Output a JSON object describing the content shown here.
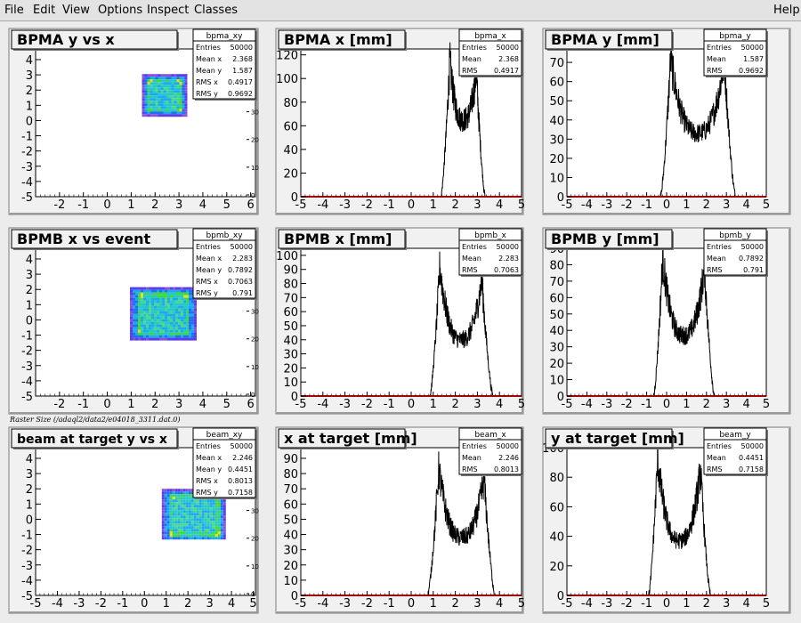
{
  "menu": {
    "items": [
      "File",
      "Edit",
      "View",
      "Options",
      "Inspect",
      "Classes"
    ],
    "help": "Help"
  },
  "canvas_caption": "Raster Size (/adaql2/data2/e04018_3311.dat.0)",
  "colors": {
    "pad_bg": "#f1f1f1",
    "frame": "#000000",
    "hist_line": "#000000",
    "x_axis": "#aa0000",
    "window_bg": "#ececec"
  },
  "chart_data": [
    {
      "type": "heatmap",
      "title": "BPMA y vs x",
      "xlim": [
        -3,
        6.2
      ],
      "ylim": [
        -5,
        4.7
      ],
      "xticks": [
        -2,
        -1,
        0,
        1,
        2,
        3,
        4,
        5,
        6
      ],
      "yticks": [
        -5,
        -4,
        -3,
        -2,
        -1,
        0,
        1,
        2,
        3,
        4
      ],
      "blob": {
        "x": [
          1.45,
          3.25
        ],
        "y": [
          0.4,
          3.05
        ]
      },
      "zticks": [
        0,
        10,
        20,
        30
      ],
      "stats": {
        "name": "bpma_xy",
        "rows": [
          [
            "Entries",
            "50000"
          ],
          [
            "Mean x",
            "2.368"
          ],
          [
            "Mean y",
            "1.587"
          ],
          [
            "RMS x",
            "0.4917"
          ],
          [
            "RMS y",
            "0.9692"
          ]
        ]
      }
    },
    {
      "type": "line",
      "title": "BPMA x [mm]",
      "xlim": [
        -5,
        5
      ],
      "ylim": [
        0,
        125
      ],
      "xticks": [
        -5,
        -4,
        -3,
        -2,
        -1,
        0,
        1,
        2,
        3,
        4,
        5
      ],
      "yticks": [
        0,
        20,
        40,
        60,
        80,
        100,
        120
      ],
      "profile": {
        "edges": [
          1.35,
          1.75,
          2.95,
          3.35
        ],
        "peaks": [
          115,
          105
        ],
        "valley": 65
      },
      "stats": {
        "name": "bpma_x",
        "rows": [
          [
            "Entries",
            "50000"
          ],
          [
            "Mean",
            "2.368"
          ],
          [
            "RMS",
            "0.4917"
          ]
        ]
      }
    },
    {
      "type": "line",
      "title": "BPMA y [mm]",
      "xlim": [
        -5,
        5
      ],
      "ylim": [
        0,
        77
      ],
      "xticks": [
        -5,
        -4,
        -3,
        -2,
        -1,
        0,
        1,
        2,
        3,
        4,
        5
      ],
      "yticks": [
        0,
        10,
        20,
        30,
        40,
        50,
        60,
        70
      ],
      "profile": {
        "edges": [
          -0.3,
          0.2,
          2.9,
          3.45
        ],
        "peaks": [
          72,
          71
        ],
        "valley": 33
      },
      "stats": {
        "name": "bpma_y",
        "rows": [
          [
            "Entries",
            "50000"
          ],
          [
            "Mean",
            "1.587"
          ],
          [
            "RMS",
            "0.9692"
          ]
        ]
      }
    },
    {
      "type": "heatmap",
      "title": "BPMB x vs event",
      "xlim": [
        -3,
        6.2
      ],
      "ylim": [
        -5,
        4.7
      ],
      "xticks": [
        -2,
        -1,
        0,
        1,
        2,
        3,
        4,
        5,
        6
      ],
      "yticks": [
        -5,
        -4,
        -3,
        -2,
        -1,
        0,
        1,
        2,
        3,
        4
      ],
      "blob": {
        "x": [
          0.95,
          3.65
        ],
        "y": [
          -1.2,
          2.15
        ]
      },
      "zticks": [
        0,
        10,
        20,
        30
      ],
      "stats": {
        "name": "bpmb_xy",
        "rows": [
          [
            "Entries",
            "50000"
          ],
          [
            "Mean x",
            "2.283"
          ],
          [
            "Mean y",
            "0.7892"
          ],
          [
            "RMS x",
            "0.7063"
          ],
          [
            "RMS y",
            "0.791"
          ]
        ]
      }
    },
    {
      "type": "line",
      "title": "BPMB x [mm]",
      "xlim": [
        -5,
        5
      ],
      "ylim": [
        0,
        105
      ],
      "xticks": [
        -5,
        -4,
        -3,
        -2,
        -1,
        0,
        1,
        2,
        3,
        4,
        5
      ],
      "yticks": [
        0,
        10,
        20,
        30,
        40,
        50,
        60,
        70,
        80,
        90,
        100
      ],
      "profile": {
        "edges": [
          0.85,
          1.3,
          3.2,
          3.7
        ],
        "peaks": [
          92,
          83
        ],
        "valley": 40
      },
      "stats": {
        "name": "bpmb_x",
        "rows": [
          [
            "Entries",
            "50000"
          ],
          [
            "Mean",
            "2.283"
          ],
          [
            "RMS",
            "0.7063"
          ]
        ]
      }
    },
    {
      "type": "line",
      "title": "BPMB y [mm]",
      "xlim": [
        -5,
        5
      ],
      "ylim": [
        0,
        90
      ],
      "xticks": [
        -5,
        -4,
        -3,
        -2,
        -1,
        0,
        1,
        2,
        3,
        4,
        5
      ],
      "yticks": [
        0,
        10,
        20,
        30,
        40,
        50,
        60,
        70,
        80,
        90
      ],
      "profile": {
        "edges": [
          -0.65,
          -0.2,
          1.9,
          2.4
        ],
        "peaks": [
          84,
          78
        ],
        "valley": 37
      },
      "stats": {
        "name": "bpmb_y",
        "rows": [
          [
            "Entries",
            "50000"
          ],
          [
            "Mean",
            "0.7892"
          ],
          [
            "RMS",
            "0.791"
          ]
        ]
      }
    },
    {
      "type": "heatmap",
      "title": "beam at target y vs x",
      "xlim": [
        -5,
        5.1
      ],
      "ylim": [
        -5,
        4.7
      ],
      "xticks": [
        -5,
        -4,
        -3,
        -2,
        -1,
        0,
        1,
        2,
        3,
        4,
        5
      ],
      "yticks": [
        -5,
        -4,
        -3,
        -2,
        -1,
        0,
        1,
        2,
        3,
        4
      ],
      "blob": {
        "x": [
          0.8,
          3.7
        ],
        "y": [
          -1.3,
          2.0
        ]
      },
      "zticks": [
        0,
        10,
        20,
        30
      ],
      "stats": {
        "name": "beam_xy",
        "rows": [
          [
            "Entries",
            "50000"
          ],
          [
            "Mean x",
            "2.246"
          ],
          [
            "Mean y",
            "0.4451"
          ],
          [
            "RMS x",
            "0.8013"
          ],
          [
            "RMS y",
            "0.7158"
          ]
        ]
      }
    },
    {
      "type": "line",
      "title": "x at target [mm]",
      "xlim": [
        -5,
        5
      ],
      "ylim": [
        0,
        97
      ],
      "xticks": [
        -5,
        -4,
        -3,
        -2,
        -1,
        0,
        1,
        2,
        3,
        4,
        5
      ],
      "yticks": [
        0,
        10,
        20,
        30,
        40,
        50,
        60,
        70,
        80,
        90
      ],
      "profile": {
        "edges": [
          0.75,
          1.25,
          3.3,
          3.8
        ],
        "peaks": [
          83,
          77
        ],
        "valley": 38
      },
      "stats": {
        "name": "beam_x",
        "rows": [
          [
            "Entries",
            "50000"
          ],
          [
            "Mean",
            "2.246"
          ],
          [
            "RMS",
            "0.8013"
          ]
        ]
      }
    },
    {
      "type": "line",
      "title": "y at target [mm]",
      "xlim": [
        -5,
        5
      ],
      "ylim": [
        0,
        100
      ],
      "xticks": [
        -5,
        -4,
        -3,
        -2,
        -1,
        0,
        1,
        2,
        3,
        4,
        5
      ],
      "yticks": [
        0,
        20,
        40,
        60,
        80,
        100
      ],
      "profile": {
        "edges": [
          -0.9,
          -0.45,
          1.7,
          2.2
        ],
        "peaks": [
          92,
          85
        ],
        "valley": 37
      },
      "stats": {
        "name": "beam_y",
        "rows": [
          [
            "Entries",
            "50000"
          ],
          [
            "Mean",
            "0.4451"
          ],
          [
            "RMS",
            "0.7158"
          ]
        ]
      }
    }
  ]
}
